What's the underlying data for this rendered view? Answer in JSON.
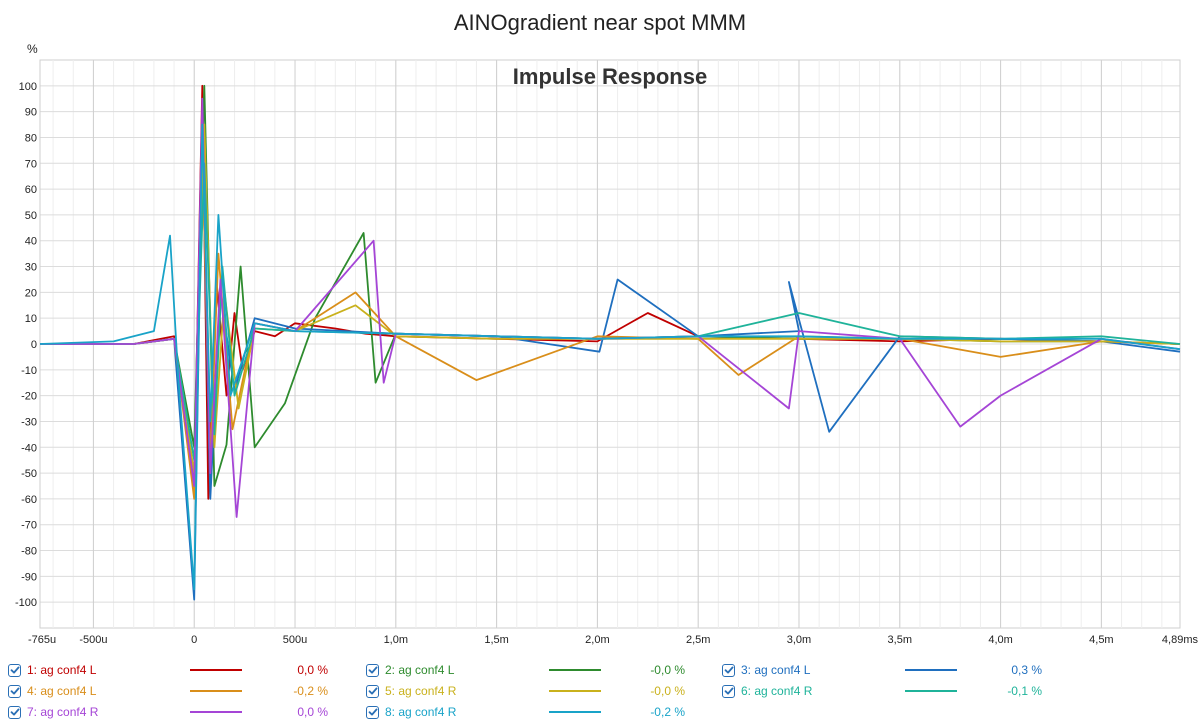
{
  "chart_data": {
    "type": "line",
    "title": "AINOgradient near spot MMM",
    "subtitle": "Impulse Response",
    "ylabel": "%",
    "xunit": "s",
    "xlim": [
      -0.000765,
      0.00489
    ],
    "ylim": [
      -110,
      110
    ],
    "yticks": [
      100,
      90,
      80,
      70,
      60,
      50,
      40,
      30,
      20,
      10,
      0,
      -10,
      -20,
      -30,
      -40,
      -50,
      -60,
      -70,
      -80,
      -90,
      -100
    ],
    "xticks": [
      {
        "value": -0.000765,
        "label": "-765u"
      },
      {
        "value": -0.0005,
        "label": "-500u"
      },
      {
        "value": 0.0,
        "label": "0"
      },
      {
        "value": 0.0005,
        "label": "500u"
      },
      {
        "value": 0.001,
        "label": "1,0m"
      },
      {
        "value": 0.0015,
        "label": "1,5m"
      },
      {
        "value": 0.002,
        "label": "2,0m"
      },
      {
        "value": 0.0025,
        "label": "2,5m"
      },
      {
        "value": 0.003,
        "label": "3,0m"
      },
      {
        "value": 0.0035,
        "label": "3,5m"
      },
      {
        "value": 0.004,
        "label": "4,0m"
      },
      {
        "value": 0.0045,
        "label": "4,5m"
      },
      {
        "value": 0.00489,
        "label": "4,89ms"
      }
    ],
    "grid": true,
    "series": [
      {
        "name": "1: ag conf4 L",
        "color": "#c00000",
        "value_label": "0,0 %",
        "x": [
          -0.000765,
          -0.0003,
          -0.0001,
          0.0,
          4e-05,
          7e-05,
          0.00011,
          0.00016,
          0.0002,
          0.00024,
          0.0003,
          0.0004,
          0.0005,
          0.0007,
          0.00085,
          0.001,
          0.0015,
          0.002,
          0.00225,
          0.0025,
          0.003,
          0.0035,
          0.004,
          0.0045,
          0.00489
        ],
        "y": [
          0,
          0,
          3,
          -55,
          100,
          -60,
          25,
          -20,
          12,
          -10,
          5,
          3,
          8,
          6,
          4,
          3,
          2,
          1,
          12,
          3,
          2,
          1,
          2,
          1,
          0
        ]
      },
      {
        "name": "2: ag conf4 L",
        "color": "#2e8b2e",
        "value_label": "-0,0 %",
        "x": [
          -0.000765,
          -0.0003,
          -0.0001,
          0.0,
          5e-05,
          0.0001,
          0.00016,
          0.00023,
          0.0003,
          0.00045,
          0.0006,
          0.00084,
          0.0009,
          0.001,
          0.0015,
          0.002,
          0.0025,
          0.003,
          0.0035,
          0.004,
          0.0045,
          0.00489
        ],
        "y": [
          0,
          0,
          2,
          -40,
          100,
          -55,
          -39,
          30,
          -40,
          -23,
          10,
          43,
          -15,
          4,
          3,
          2,
          3,
          2,
          2,
          1,
          1,
          0
        ]
      },
      {
        "name": "3: ag conf4 L",
        "color": "#1f6fbf",
        "value_label": "0,3 %",
        "x": [
          -0.000765,
          -0.0003,
          -0.0001,
          0.0,
          4e-05,
          8e-05,
          0.00013,
          0.0002,
          0.0003,
          0.0005,
          0.001,
          0.0015,
          0.00201,
          0.0021,
          0.0025,
          0.003,
          0.00295,
          0.00315,
          0.0035,
          0.004,
          0.0045,
          0.00489
        ],
        "y": [
          0,
          0,
          2,
          -99,
          80,
          -60,
          20,
          -18,
          10,
          6,
          4,
          3,
          -3,
          25,
          3,
          5,
          24,
          -34,
          3,
          2,
          1,
          -3
        ]
      },
      {
        "name": "4: ag conf4 L",
        "color": "#d98e1a",
        "value_label": "-0,2 %",
        "x": [
          -0.000765,
          -0.0003,
          -0.0001,
          0.0,
          4e-05,
          8e-05,
          0.00012,
          0.00019,
          0.0003,
          0.0005,
          0.0008,
          0.001,
          0.0014,
          0.002,
          0.0025,
          0.0027,
          0.003,
          0.0035,
          0.004,
          0.0045,
          0.00489
        ],
        "y": [
          0,
          0,
          2,
          -60,
          75,
          -45,
          35,
          -33,
          8,
          5,
          20,
          3,
          -14,
          3,
          2,
          -12,
          3,
          2,
          -5,
          1,
          0
        ]
      },
      {
        "name": "5: ag conf4 R",
        "color": "#c9b11c",
        "value_label": "-0,0 %",
        "x": [
          -0.000765,
          -0.0003,
          -0.0001,
          0.0,
          5e-05,
          0.0001,
          0.00015,
          0.00022,
          0.0003,
          0.0005,
          0.0008,
          0.001,
          0.0015,
          0.002,
          0.0025,
          0.003,
          0.0035,
          0.004,
          0.0045,
          0.00489
        ],
        "y": [
          0,
          0,
          2,
          -50,
          85,
          -40,
          20,
          -25,
          6,
          5,
          15,
          3,
          2,
          2,
          2,
          2,
          2,
          1,
          1,
          0
        ]
      },
      {
        "name": "6: ag conf4 R",
        "color": "#1fb39a",
        "value_label": "-0,1 %",
        "x": [
          -0.000765,
          -0.0003,
          -0.0001,
          0.0,
          5e-05,
          0.0001,
          0.00014,
          0.0002,
          0.0003,
          0.0005,
          0.001,
          0.0015,
          0.002,
          0.0025,
          0.003,
          0.0035,
          0.004,
          0.0045,
          0.00489
        ],
        "y": [
          0,
          0,
          2,
          -45,
          70,
          -35,
          30,
          -20,
          6,
          5,
          4,
          3,
          2,
          3,
          12,
          3,
          2,
          3,
          0
        ]
      },
      {
        "name": "7: ag conf4 R",
        "color": "#a545d6",
        "value_label": "0,0 %",
        "x": [
          -0.000765,
          -0.0003,
          -0.0001,
          0.0,
          4e-05,
          8e-05,
          0.00013,
          0.00021,
          0.0003,
          0.0005,
          0.00089,
          0.00094,
          0.001,
          0.0015,
          0.002,
          0.0025,
          0.00295,
          0.003,
          0.0035,
          0.0038,
          0.004,
          0.0045,
          0.00489
        ],
        "y": [
          0,
          0,
          2,
          -55,
          95,
          -50,
          25,
          -67,
          8,
          5,
          40,
          -15,
          4,
          3,
          2,
          3,
          -25,
          5,
          2,
          -32,
          -20,
          2,
          -2
        ]
      },
      {
        "name": "8: ag conf4 R",
        "color": "#19a3c8",
        "value_label": "-0,2 %",
        "x": [
          -0.000765,
          -0.0004,
          -0.0002,
          -0.00012,
          -8e-05,
          0.0,
          4e-05,
          8e-05,
          0.00012,
          0.00018,
          0.0003,
          0.0005,
          0.001,
          0.0015,
          0.002,
          0.0025,
          0.003,
          0.0035,
          0.004,
          0.0045,
          0.00489
        ],
        "y": [
          0,
          1,
          5,
          42,
          -12,
          -95,
          85,
          -30,
          50,
          -20,
          8,
          5,
          4,
          3,
          2,
          3,
          3,
          2,
          2,
          2,
          -2
        ]
      }
    ]
  },
  "legend": {
    "items": [
      {
        "label": "1: ag conf4 L",
        "value": "0,0 %",
        "color": "#c00000"
      },
      {
        "label": "2: ag conf4 L",
        "value": "-0,0 %",
        "color": "#2e8b2e"
      },
      {
        "label": "3: ag conf4 L",
        "value": "0,3 %",
        "color": "#1f6fbf"
      },
      {
        "label": "4: ag conf4 L",
        "value": "-0,2 %",
        "color": "#d98e1a"
      },
      {
        "label": "5: ag conf4 R",
        "value": "-0,0 %",
        "color": "#c9b11c"
      },
      {
        "label": "6: ag conf4 R",
        "value": "-0,1 %",
        "color": "#1fb39a"
      },
      {
        "label": "7: ag conf4 R",
        "value": "0,0 %",
        "color": "#a545d6"
      },
      {
        "label": "8: ag conf4 R",
        "value": "-0,2 %",
        "color": "#19a3c8"
      }
    ]
  }
}
